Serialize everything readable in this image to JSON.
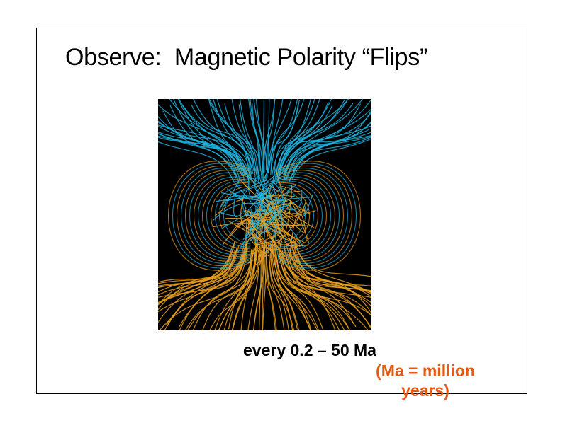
{
  "slide": {
    "title": "Observe:  Magnetic Polarity “Flips”",
    "caption": "every 0.2 – 50 Ma",
    "note": "(Ma = million\nyears)"
  },
  "figure": {
    "depicts": "magnetic field line simulation",
    "colors": {
      "background": "#000000",
      "upper_field": "#1fb3de",
      "lower_field": "#e8a020"
    }
  },
  "colors": {
    "text": "#000000",
    "note": "#e85a12",
    "frame": "#000000"
  }
}
